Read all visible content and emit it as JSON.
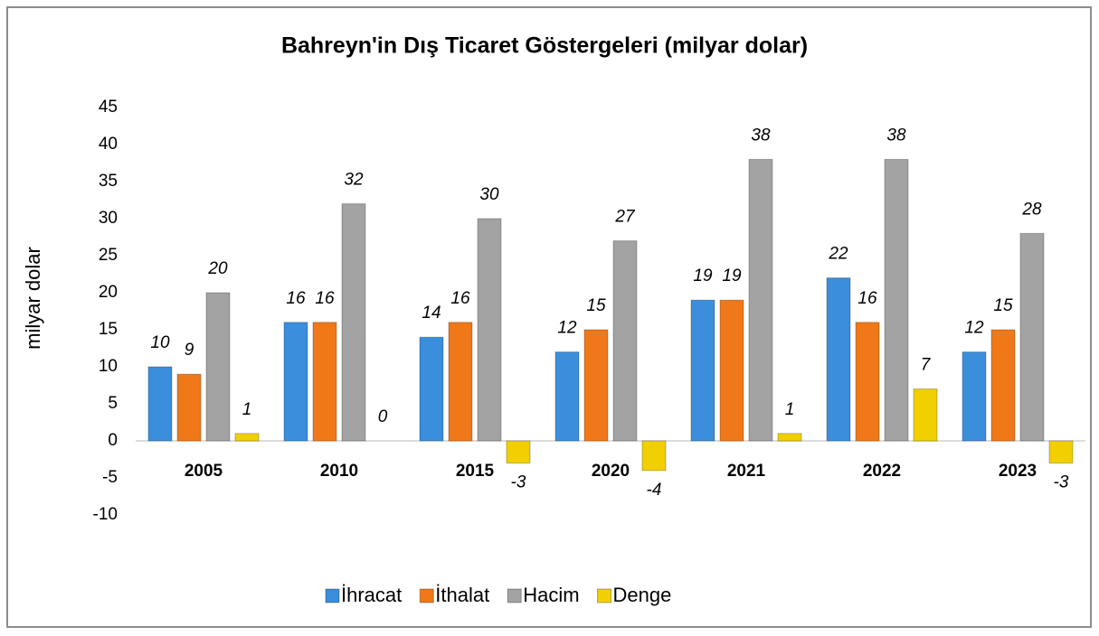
{
  "chart_data": {
    "type": "bar",
    "title": "Bahreyn'in Dış Ticaret Göstergeleri (milyar dolar)",
    "y_label": "milyar dolar",
    "categories": [
      "2005",
      "2010",
      "2015",
      "2020",
      "2021",
      "2022",
      "2023"
    ],
    "series": [
      {
        "name": "İhracat",
        "color": "#3b8edb",
        "values": [
          10,
          16,
          14,
          12,
          19,
          22,
          12
        ]
      },
      {
        "name": "İthalat",
        "color": "#f07818",
        "values": [
          9,
          16,
          16,
          15,
          19,
          16,
          15
        ]
      },
      {
        "name": "Hacim",
        "color": "#a3a3a3",
        "values": [
          20,
          32,
          30,
          27,
          38,
          38,
          28
        ]
      },
      {
        "name": "Denge",
        "color": "#f2cf00",
        "values": [
          1,
          0,
          -3,
          -4,
          1,
          7,
          -3
        ]
      }
    ],
    "ylim": [
      -10,
      45
    ],
    "yticks": [
      -10,
      -5,
      0,
      5,
      10,
      15,
      20,
      25,
      30,
      35,
      40,
      45
    ],
    "grid": false,
    "legend": "bottom"
  }
}
